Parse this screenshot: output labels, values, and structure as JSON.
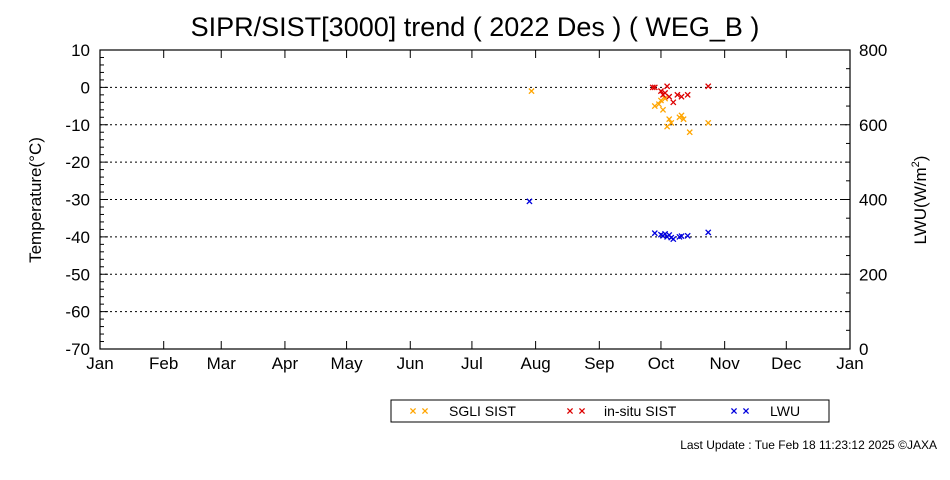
{
  "chart_data": {
    "type": "scatter",
    "title": "SIPR/SIST[3000] trend ( 2022 Des ) ( WEG_B )",
    "xlabel": "",
    "ylabel": "Temperature(°C)",
    "y2label": "LWU(W/m",
    "y2label_sup": "2",
    "y2label_close": ")",
    "x_type": "month",
    "x_ticks": [
      "Jan",
      "Feb",
      "Mar",
      "Apr",
      "May",
      "Jun",
      "Jul",
      "Aug",
      "Sep",
      "Oct",
      "Nov",
      "Dec",
      "Jan"
    ],
    "ylim": [
      -70,
      10
    ],
    "y_ticks": [
      10,
      0,
      -10,
      -20,
      -30,
      -40,
      -50,
      -60,
      -70
    ],
    "y2lim": [
      0,
      800
    ],
    "y2_ticks": [
      800,
      600,
      400,
      200,
      0
    ],
    "grid": "horizontal dotted",
    "legend_position": "bottom",
    "series": [
      {
        "name": "SGLI SIST",
        "color": "#ffa500",
        "axis": "left",
        "points": [
          [
            "07-30",
            -1.0
          ],
          [
            "09-28",
            -5.0
          ],
          [
            "09-30",
            -4.5
          ],
          [
            "10-01",
            -3.5
          ],
          [
            "10-02",
            -6.0
          ],
          [
            "10-03",
            -3.0
          ],
          [
            "10-04",
            -10.5
          ],
          [
            "10-05",
            -8.5
          ],
          [
            "10-06",
            -9.5
          ],
          [
            "10-10",
            -8.0
          ],
          [
            "10-11",
            -7.5
          ],
          [
            "10-12",
            -8.5
          ],
          [
            "10-15",
            -12.0
          ],
          [
            "10-24",
            -9.5
          ]
        ]
      },
      {
        "name": "in-situ SIST",
        "color": "#dd0000",
        "axis": "left",
        "points": [
          [
            "09-27",
            0.0
          ],
          [
            "09-28",
            0.0
          ],
          [
            "10-01",
            -1.0
          ],
          [
            "10-02",
            -2.0
          ],
          [
            "10-03",
            -1.5
          ],
          [
            "10-04",
            0.3
          ],
          [
            "10-05",
            -2.5
          ],
          [
            "10-07",
            -4.0
          ],
          [
            "10-09",
            -2.0
          ],
          [
            "10-11",
            -2.5
          ],
          [
            "10-14",
            -2.0
          ],
          [
            "10-24",
            0.3
          ]
        ]
      },
      {
        "name": "LWU",
        "color": "#0000dd",
        "axis": "right",
        "points": [
          [
            "07-29",
            395
          ],
          [
            "09-28",
            310
          ],
          [
            "10-01",
            306
          ],
          [
            "10-02",
            303
          ],
          [
            "10-03",
            308
          ],
          [
            "10-04",
            300
          ],
          [
            "10-05",
            305
          ],
          [
            "10-06",
            298
          ],
          [
            "10-07",
            294
          ],
          [
            "10-10",
            300
          ],
          [
            "10-11",
            302
          ],
          [
            "10-14",
            303
          ],
          [
            "10-24",
            312
          ]
        ]
      }
    ]
  },
  "footer": "Last Update : Tue Feb 18 11:23:12 2025  ©JAXA"
}
